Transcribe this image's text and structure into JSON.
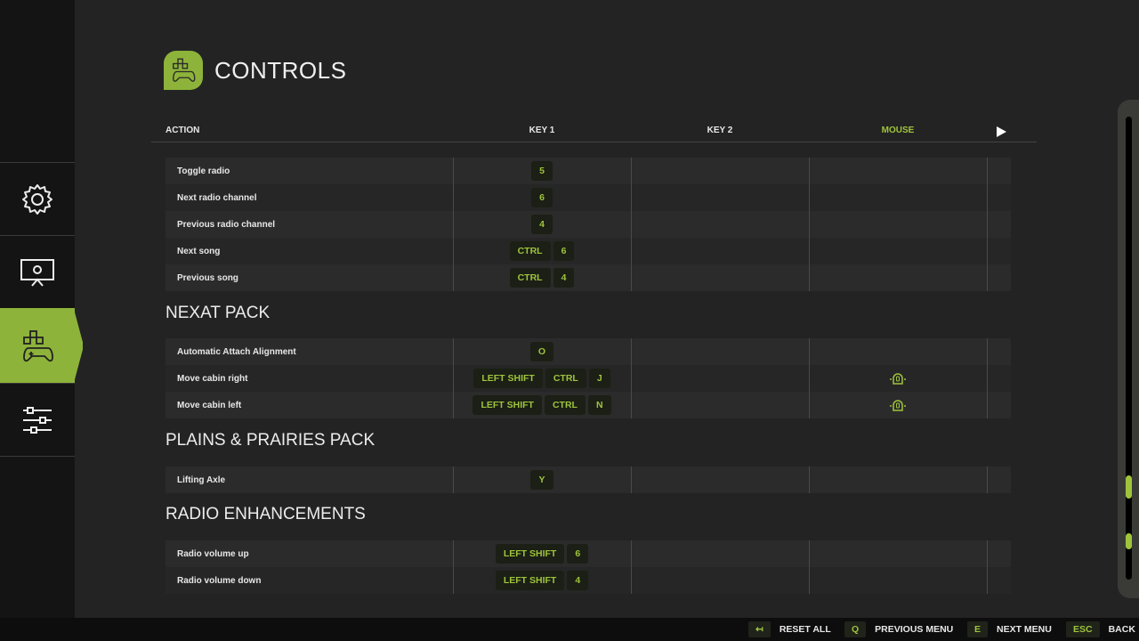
{
  "colors": {
    "accent": "#8db33a",
    "key_text": "#9fc43c",
    "background": "#232323"
  },
  "sidebar": {
    "items": [
      {
        "icon": "gear-icon",
        "active": false
      },
      {
        "icon": "display-settings-icon",
        "active": false
      },
      {
        "icon": "controls-gamepad-icon",
        "active": true
      },
      {
        "icon": "sliders-icon",
        "active": false
      }
    ]
  },
  "header": {
    "title": "CONTROLS",
    "icon": "controls-gamepad-icon"
  },
  "columns": {
    "action": "ACTION",
    "key1": "KEY 1",
    "key2": "KEY 2",
    "mouse": "MOUSE",
    "next_icon": "play-arrow-icon"
  },
  "sections": [
    {
      "title": "",
      "rows": [
        {
          "action": "Toggle radio",
          "key1": [
            "5"
          ]
        },
        {
          "action": "Next radio channel",
          "key1": [
            "6"
          ]
        },
        {
          "action": "Previous radio channel",
          "key1": [
            "4"
          ]
        },
        {
          "action": "Next song",
          "key1": [
            "CTRL",
            "6"
          ]
        },
        {
          "action": "Previous song",
          "key1": [
            "CTRL",
            "4"
          ]
        }
      ]
    },
    {
      "title": "NEXAT PACK",
      "rows": [
        {
          "action": "Automatic Attach Alignment",
          "key1": [
            "O"
          ]
        },
        {
          "action": "Move cabin right",
          "key1": [
            "LEFT SHIFT",
            "CTRL",
            "J"
          ],
          "mouse": "mouse-wheel-icon"
        },
        {
          "action": "Move cabin left",
          "key1": [
            "LEFT SHIFT",
            "CTRL",
            "N"
          ],
          "mouse": "mouse-wheel-icon"
        }
      ]
    },
    {
      "title": "PLAINS & PRAIRIES PACK",
      "rows": [
        {
          "action": "Lifting Axle",
          "key1": [
            "Y"
          ]
        }
      ]
    },
    {
      "title": "RADIO ENHANCEMENTS",
      "rows": [
        {
          "action": "Radio volume up",
          "key1": [
            "LEFT SHIFT",
            "6"
          ]
        },
        {
          "action": "Radio volume down",
          "key1": [
            "LEFT SHIFT",
            "4"
          ]
        }
      ]
    }
  ],
  "scrollbar": {
    "position": "near-bottom"
  },
  "bottombar": [
    {
      "key": "↤",
      "label": "RESET ALL"
    },
    {
      "key": "Q",
      "label": "PREVIOUS MENU"
    },
    {
      "key": "E",
      "label": "NEXT MENU"
    },
    {
      "key": "ESC",
      "label": "BACK"
    }
  ]
}
